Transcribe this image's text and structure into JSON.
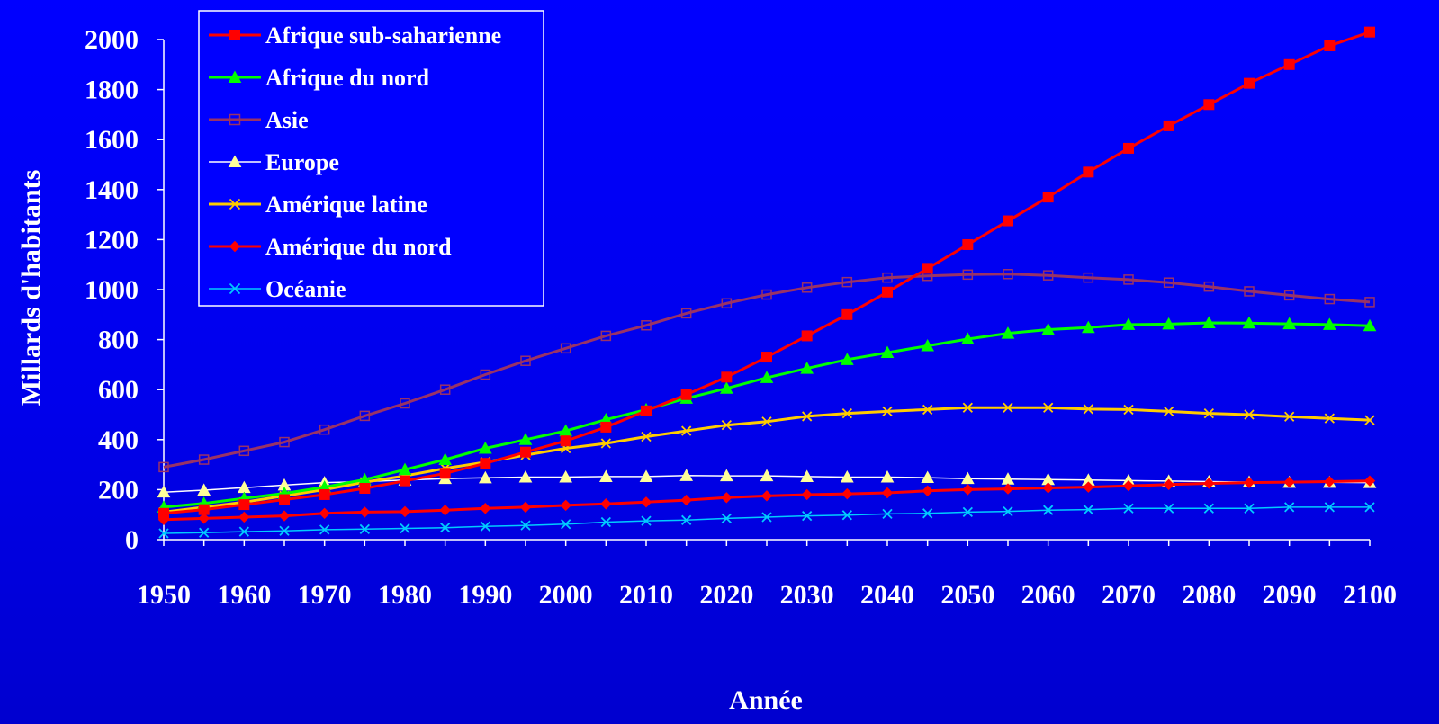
{
  "chart_data": {
    "type": "line",
    "title": "",
    "xlabel": "Année",
    "ylabel": "Millards d'habitants",
    "ylim": [
      0,
      2000
    ],
    "xlim": [
      1950,
      2100
    ],
    "yticks": [
      0,
      200,
      400,
      600,
      800,
      1000,
      1200,
      1400,
      1600,
      1800,
      2000
    ],
    "xticks": [
      1950,
      1960,
      1970,
      1980,
      1990,
      2000,
      2010,
      2020,
      2030,
      2040,
      2050,
      2060,
      2070,
      2080,
      2090,
      2100
    ],
    "grid": false,
    "legend_position": "top-left",
    "x": [
      1950,
      1955,
      1960,
      1965,
      1970,
      1975,
      1980,
      1985,
      1990,
      1995,
      2000,
      2005,
      2010,
      2015,
      2020,
      2025,
      2030,
      2035,
      2040,
      2045,
      2050,
      2055,
      2060,
      2065,
      2070,
      2075,
      2080,
      2085,
      2090,
      2095,
      2100
    ],
    "series": [
      {
        "name": "Afrique sub-saharienne",
        "color": "#ff0000",
        "marker": "square",
        "values": [
          105,
          120,
          140,
          160,
          180,
          205,
          235,
          265,
          305,
          350,
          395,
          450,
          515,
          580,
          650,
          730,
          815,
          900,
          990,
          1085,
          1180,
          1275,
          1370,
          1470,
          1565,
          1655,
          1740,
          1825,
          1900,
          1975,
          2030
        ]
      },
      {
        "name": "Afrique du nord",
        "color": "#00ff00",
        "marker": "triangle",
        "values": [
          130,
          145,
          165,
          185,
          210,
          240,
          280,
          320,
          365,
          400,
          435,
          480,
          520,
          565,
          605,
          648,
          685,
          720,
          748,
          775,
          802,
          825,
          840,
          848,
          860,
          862,
          867,
          866,
          863,
          860,
          855
        ]
      },
      {
        "name": "Asie",
        "color": "#993366",
        "marker": "open-square",
        "values": [
          290,
          320,
          355,
          390,
          440,
          495,
          545,
          600,
          660,
          715,
          765,
          815,
          857,
          905,
          945,
          980,
          1008,
          1030,
          1048,
          1055,
          1060,
          1062,
          1057,
          1048,
          1040,
          1028,
          1012,
          993,
          977,
          962,
          950
        ]
      },
      {
        "name": "Europe",
        "color": "#ffffff",
        "marker": "triangle",
        "markerColor": "#ffff99",
        "values": [
          190,
          198,
          208,
          218,
          228,
          232,
          238,
          244,
          247,
          250,
          250,
          252,
          252,
          256,
          255,
          255,
          252,
          250,
          250,
          248,
          244,
          242,
          240,
          238,
          236,
          234,
          232,
          230,
          229,
          229,
          228
        ]
      },
      {
        "name": "Amérique latine",
        "color": "#ffcc00",
        "marker": "x",
        "values": [
          110,
          130,
          150,
          175,
          200,
          230,
          255,
          285,
          310,
          338,
          365,
          385,
          412,
          435,
          458,
          472,
          493,
          505,
          513,
          520,
          528,
          528,
          528,
          522,
          520,
          513,
          505,
          500,
          492,
          485,
          478
        ]
      },
      {
        "name": "Amérique du nord",
        "color": "#ff0000",
        "marker": "diamond",
        "markerColor": "#ff0000",
        "values": [
          80,
          85,
          90,
          95,
          105,
          110,
          112,
          118,
          125,
          130,
          137,
          143,
          150,
          158,
          168,
          175,
          180,
          183,
          187,
          195,
          200,
          203,
          207,
          210,
          215,
          220,
          225,
          228,
          230,
          232,
          235
        ]
      },
      {
        "name": "Océanie",
        "color": "#00ccff",
        "marker": "x",
        "values": [
          25,
          28,
          32,
          35,
          40,
          42,
          45,
          48,
          53,
          57,
          62,
          70,
          75,
          78,
          85,
          90,
          95,
          98,
          103,
          105,
          110,
          113,
          118,
          120,
          125,
          125,
          125,
          125,
          130,
          130,
          130
        ]
      }
    ]
  }
}
